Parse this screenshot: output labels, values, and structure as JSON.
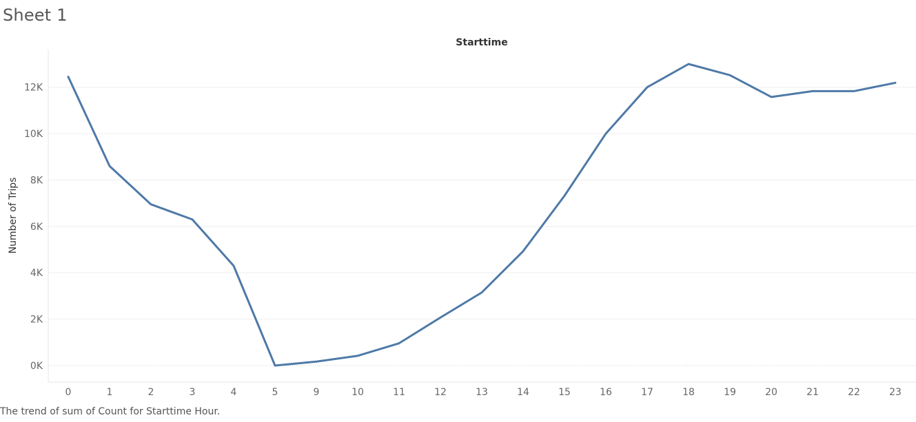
{
  "sheet_title": "Sheet 1",
  "caption": "The trend of sum of Count for Starttime Hour.",
  "colors": {
    "line": "#4e79a7",
    "grid": "#eeeeee",
    "zero_line": "#cccccc",
    "tick_text": "#666666",
    "title_text": "#333333"
  },
  "chart_data": {
    "type": "line",
    "title": "Starttime",
    "xlabel": "",
    "ylabel": "Number of Trips",
    "categories": [
      "0",
      "1",
      "2",
      "3",
      "4",
      "5",
      "9",
      "10",
      "11",
      "12",
      "13",
      "14",
      "15",
      "16",
      "17",
      "18",
      "19",
      "20",
      "21",
      "22",
      "23"
    ],
    "series": [
      {
        "values": [
          12450,
          8600,
          6950,
          6300,
          4300,
          0,
          170,
          420,
          960,
          2070,
          3150,
          4930,
          7320,
          10000,
          12000,
          13000,
          12520,
          11580,
          11830,
          11830,
          12190
        ]
      }
    ],
    "ylim": [
      0,
      13000
    ],
    "yticks": [
      0,
      2000,
      4000,
      6000,
      8000,
      10000,
      12000
    ],
    "ytick_labels": [
      "0K",
      "2K",
      "4K",
      "6K",
      "8K",
      "10K",
      "12K"
    ],
    "grid": true,
    "legend": "none"
  }
}
